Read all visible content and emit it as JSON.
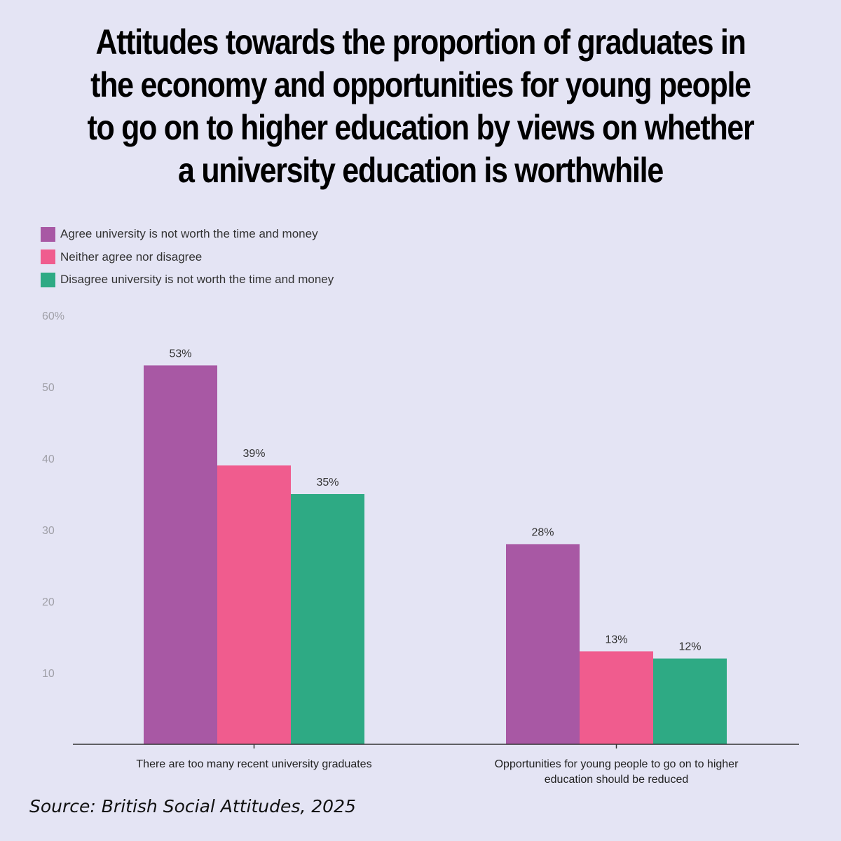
{
  "title": "Attitudes towards the proportion of graduates in the economy and opportunities for young people to go on to higher education by views on whether a university education is worthwhile",
  "source": "Source: British Social Attitudes, 2025",
  "colors": {
    "background": "#e4e4f4",
    "agree": "#a858a4",
    "neither": "#f05c8e",
    "disagree": "#2eaa84",
    "axis": "#333333",
    "tick_label": "#a0a0a8"
  },
  "chart_data": {
    "type": "bar",
    "title": "Attitudes towards the proportion of graduates in the economy and opportunities for young people to go on to higher education by views on whether a university education is worthwhile",
    "xlabel": "",
    "ylabel": "",
    "ylim": [
      0,
      60
    ],
    "y_ticks": [
      {
        "value": 10,
        "label": "10"
      },
      {
        "value": 20,
        "label": "20"
      },
      {
        "value": 30,
        "label": "30"
      },
      {
        "value": 40,
        "label": "40"
      },
      {
        "value": 50,
        "label": "50"
      },
      {
        "value": 60,
        "label": "60%"
      }
    ],
    "grid": false,
    "legend_position": "top-left",
    "categories": [
      [
        "There are too many recent university graduates"
      ],
      [
        "Opportunities for young people to go on to higher",
        "education should be reduced"
      ]
    ],
    "series": [
      {
        "name": "Agree university is not worth the time and money",
        "color": "#a858a4",
        "values": [
          53,
          28
        ],
        "labels": [
          "53%",
          "28%"
        ]
      },
      {
        "name": "Neither agree nor disagree",
        "color": "#f05c8e",
        "values": [
          39,
          13
        ],
        "labels": [
          "39%",
          "13%"
        ]
      },
      {
        "name": "Disagree university is not worth the time and money",
        "color": "#2eaa84",
        "values": [
          35,
          12
        ],
        "labels": [
          "35%",
          "12%"
        ]
      }
    ]
  }
}
